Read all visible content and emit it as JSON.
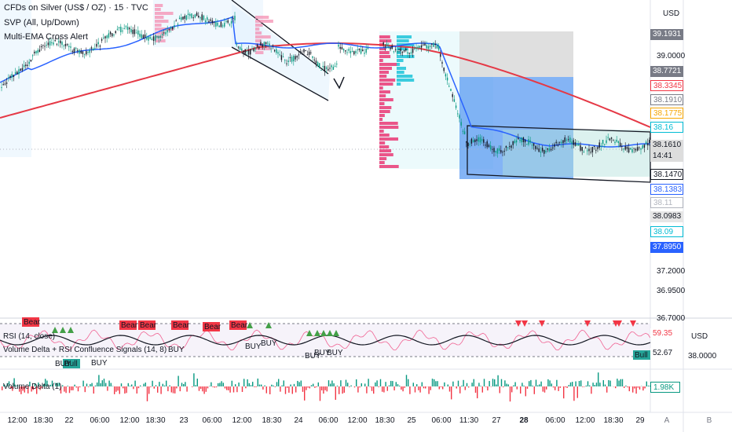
{
  "header": {
    "symbol_title": "CFDs on Silver (US$ / OZ) · 15 · TVC",
    "indicator_1": "SVP (All, Up/Down)",
    "indicator_2": "Multi-EMA Cross Alert"
  },
  "price_axis": {
    "currency": "USD",
    "ticks": [
      "39.0000",
      "37.2000",
      "36.9500",
      "36.7000"
    ],
    "badges": [
      {
        "label": "39.1931",
        "bg": "#787b86",
        "fg": "#ffffff"
      },
      {
        "label": "38.7721",
        "bg": "#787b86",
        "fg": "#ffffff"
      },
      {
        "label": "38.3345",
        "bg": "#ffffff",
        "fg": "#f23645"
      },
      {
        "label": "38.1910",
        "bg": "#ffffff",
        "fg": "#787b86"
      },
      {
        "label": "38.1775",
        "bg": "#ffffff",
        "fg": "#f7a600"
      },
      {
        "label": "38.16",
        "bg": "#ffffff",
        "fg": "#00bcd4"
      },
      {
        "label": "38.1610",
        "bg": "#dddddd",
        "fg": "#131722"
      },
      {
        "label": "14:41",
        "bg": "#dddddd",
        "fg": "#131722"
      },
      {
        "label": "38.1470",
        "bg": "#ffffff",
        "fg": "#131722"
      },
      {
        "label": "38.1383",
        "bg": "#ffffff",
        "fg": "#2962ff"
      },
      {
        "label": "38.11",
        "bg": "#ffffff",
        "fg": "#b2b5be"
      },
      {
        "label": "38.0983",
        "bg": "#e6e6e6",
        "fg": "#131722"
      },
      {
        "label": "38.09",
        "bg": "#ffffff",
        "fg": "#00bcd4"
      },
      {
        "label": "37.8950",
        "bg": "#2962ff",
        "fg": "#ffffff"
      }
    ]
  },
  "rsi_pane": {
    "label": "RSI (14, close)",
    "value_badge": "59.35",
    "signal_labels": {
      "bear": "Bear",
      "bull": "Bull",
      "buy": "BUY"
    }
  },
  "vd_rsi_pane": {
    "label": "Volume Delta + RSI Confluence Signals (14, 8)",
    "value_badge": "52.67",
    "axis_currency": "USD",
    "axis_value": "38.0000"
  },
  "vd_pane": {
    "label": "Volume Delta (1)",
    "value_badge": "1.98K"
  },
  "time_axis": {
    "labels": [
      "12:00",
      "18:30",
      "22",
      "06:00",
      "12:00",
      "18:30",
      "23",
      "06:00",
      "12:00",
      "18:30",
      "24",
      "06:00",
      "12:00",
      "18:30",
      "25",
      "06:00",
      "11:30",
      "27",
      "28",
      "06:00",
      "12:00",
      "18:30",
      "29"
    ],
    "scale_buttons": [
      "A",
      "B"
    ]
  },
  "colors": {
    "ema_slow": "#e53946",
    "ema_fast": "#2962ff",
    "price": "#131722",
    "bull": "#089981",
    "bear": "#f23645"
  }
}
